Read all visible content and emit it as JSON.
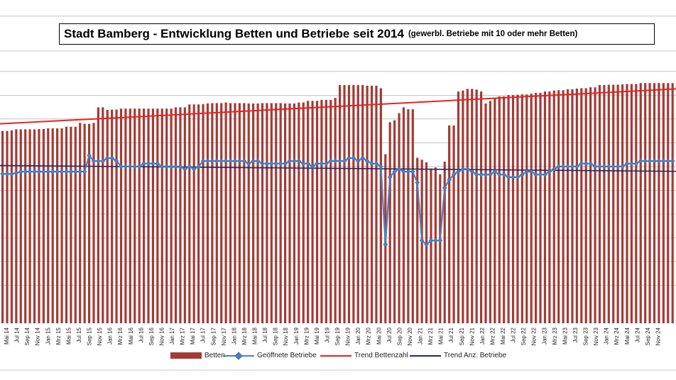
{
  "chart_data": {
    "type": "bar",
    "title": "Stadt Bamberg - Entwicklung Betten und Betriebe seit 2014",
    "subtitle": "(gewerbl. Betriebe mit 10 oder mehr Betten)",
    "grid": true,
    "legend_position": "bottom",
    "x_tick_labels": [
      "Mai 14",
      "Jul 14",
      "Sep 14",
      "Nov 14",
      "Jan 15",
      "Mrz 15",
      "Mai 15",
      "Jul 15",
      "Sep 15",
      "Nov 15",
      "Jan 16",
      "Mrz 16",
      "Mai 16",
      "Jul 16",
      "Sep 16",
      "Nov 16",
      "Jan 17",
      "Mrz 17",
      "Mai 17",
      "Jul 17",
      "Sep 17",
      "Nov 17",
      "Jan 18",
      "Mrz 18",
      "Mai 18",
      "Jul 18",
      "Sep 18",
      "Nov 18",
      "Jan 19",
      "Mrz 19",
      "Mai 19",
      "Jul 19",
      "Sep 19",
      "Nov 19",
      "Jan 20",
      "Mrz 20",
      "Mai 20",
      "Jul 20",
      "Sep 20",
      "Nov 20",
      "Jan 21",
      "Mrz 21",
      "Mai 21",
      "Jul 21",
      "Sep 21",
      "Nov 21",
      "Jan 22",
      "Mrz 22",
      "Mai 22",
      "Jul 22",
      "Sep 22",
      "Nov 22",
      "Jan 23",
      "Mrz 23",
      "Mai 23",
      "Jul 23",
      "Sep 23",
      "Nov 23",
      "Jan 24",
      "Mrz 24",
      "Mai 24",
      "Jul 24",
      "Sep 24",
      "Nov 24"
    ],
    "series": [
      {
        "name": "Betten",
        "color": "#a33b35",
        "values": [
          0.595,
          0.595,
          0.597,
          0.6,
          0.6,
          0.6,
          0.6,
          0.6,
          0.601,
          0.601,
          0.603,
          0.603,
          0.603,
          0.603,
          0.608,
          0.608,
          0.608,
          0.62,
          0.617,
          0.617,
          0.62,
          0.668,
          0.668,
          0.66,
          0.661,
          0.661,
          0.664,
          0.664,
          0.664,
          0.664,
          0.664,
          0.664,
          0.664,
          0.664,
          0.664,
          0.664,
          0.664,
          0.664,
          0.668,
          0.668,
          0.668,
          0.677,
          0.677,
          0.677,
          0.678,
          0.68,
          0.681,
          0.681,
          0.681,
          0.683,
          0.681,
          0.681,
          0.681,
          0.681,
          0.68,
          0.68,
          0.68,
          0.681,
          0.681,
          0.681,
          0.681,
          0.681,
          0.68,
          0.68,
          0.68,
          0.683,
          0.683,
          0.688,
          0.688,
          0.688,
          0.691,
          0.691,
          0.691,
          0.697,
          0.737,
          0.737,
          0.737,
          0.737,
          0.737,
          0.737,
          0.735,
          0.735,
          0.735,
          0.727,
          0.523,
          0.622,
          0.628,
          0.65,
          0.668,
          0.662,
          0.662,
          0.512,
          0.506,
          0.498,
          0.479,
          0.482,
          0.461,
          0.5,
          0.612,
          0.612,
          0.717,
          0.72,
          0.725,
          0.725,
          0.723,
          0.717,
          0.68,
          0.688,
          0.697,
          0.702,
          0.702,
          0.706,
          0.706,
          0.707,
          0.708,
          0.708,
          0.71,
          0.713,
          0.713,
          0.717,
          0.717,
          0.72,
          0.721,
          0.721,
          0.724,
          0.724,
          0.726,
          0.727,
          0.727,
          0.73,
          0.73,
          0.737,
          0.737,
          0.738,
          0.738,
          0.738,
          0.739,
          0.74,
          0.74,
          0.74,
          0.743,
          0.743,
          0.743,
          0.743,
          0.743,
          0.743,
          0.743,
          0.743
        ]
      },
      {
        "name": "Geöffnete Betriebe",
        "color": "#4f81bd",
        "values": [
          0.462,
          0.462,
          0.462,
          0.465,
          0.469,
          0.469,
          0.469,
          0.469,
          0.469,
          0.469,
          0.469,
          0.469,
          0.469,
          0.469,
          0.469,
          0.469,
          0.469,
          0.469,
          0.469,
          0.519,
          0.502,
          0.502,
          0.502,
          0.511,
          0.511,
          0.502,
          0.485,
          0.485,
          0.485,
          0.485,
          0.485,
          0.494,
          0.494,
          0.494,
          0.494,
          0.485,
          0.485,
          0.485,
          0.485,
          0.485,
          0.477,
          0.485,
          0.477,
          0.485,
          0.502,
          0.502,
          0.502,
          0.502,
          0.502,
          0.502,
          0.502,
          0.502,
          0.502,
          0.502,
          0.494,
          0.502,
          0.502,
          0.494,
          0.494,
          0.494,
          0.494,
          0.494,
          0.494,
          0.502,
          0.502,
          0.502,
          0.494,
          0.494,
          0.485,
          0.494,
          0.494,
          0.494,
          0.502,
          0.502,
          0.502,
          0.502,
          0.511,
          0.511,
          0.502,
          0.511,
          0.502,
          0.494,
          0.494,
          0.485,
          0.244,
          0.452,
          0.469,
          0.477,
          0.469,
          0.469,
          0.469,
          0.435,
          0.256,
          0.244,
          0.256,
          0.256,
          0.256,
          0.419,
          0.444,
          0.46,
          0.469,
          0.477,
          0.477,
          0.469,
          0.46,
          0.46,
          0.46,
          0.46,
          0.469,
          0.46,
          0.46,
          0.452,
          0.452,
          0.452,
          0.46,
          0.469,
          0.469,
          0.46,
          0.46,
          0.46,
          0.469,
          0.477,
          0.485,
          0.485,
          0.485,
          0.485,
          0.485,
          0.494,
          0.494,
          0.494,
          0.485,
          0.485,
          0.485,
          0.485,
          0.485,
          0.485,
          0.485,
          0.494,
          0.494,
          0.494,
          0.502,
          0.502,
          0.502,
          0.502,
          0.502,
          0.502,
          0.502,
          0.502
        ]
      },
      {
        "name": "Trend Bettenzahl",
        "color": "#e8231f",
        "type": "line",
        "start": 0.617,
        "end": 0.725
      },
      {
        "name": "Trend Anz. Betriebe",
        "color": "#1f2a6b",
        "type": "line",
        "start": 0.488,
        "end": 0.47
      }
    ],
    "ylim": [
      0,
      1
    ]
  },
  "legend": {
    "betten": "Betten",
    "betriebe": "Geöffnete Betriebe",
    "trend_betten": "Trend Bettenzahl",
    "trend_betriebe": "Trend Anz. Betriebe"
  }
}
